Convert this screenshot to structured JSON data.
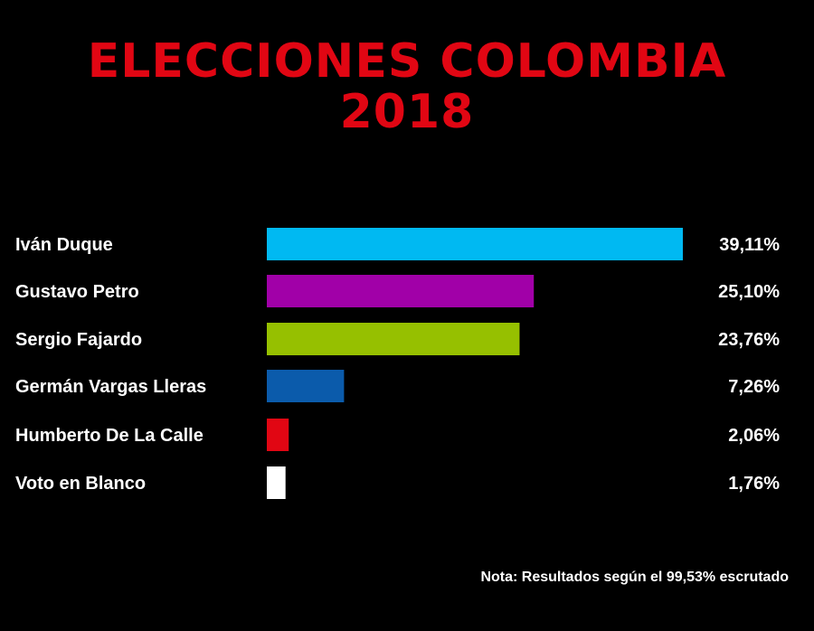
{
  "header": {
    "title_line1": "ELECCIONES COLOMBIA",
    "title_line2": "2018"
  },
  "chart_data": {
    "type": "bar",
    "orientation": "horizontal",
    "title": "ELECCIONES COLOMBIA 2018",
    "categories": [
      "Iván Duque",
      "Gustavo Petro",
      "Sergio Fajardo",
      "Germán Vargas Lleras",
      "Humberto De La Calle",
      "Voto en Blanco"
    ],
    "values": [
      39.11,
      25.1,
      23.76,
      7.26,
      2.06,
      1.76
    ],
    "value_labels": [
      "39,11%",
      "25,10%",
      "23,76%",
      "7,26%",
      "2,06%",
      "1,76%"
    ],
    "colors": [
      "#00b9f2",
      "#a100a8",
      "#96c000",
      "#0b5bab",
      "#e10613",
      "#ffffff"
    ],
    "xlim": [
      0,
      39.11
    ],
    "grid": false,
    "legend": "none"
  },
  "colors": {
    "background": "#000000",
    "title": "#e10613",
    "text": "#ffffff"
  },
  "footer": {
    "note": "Nota: Resultados según el 99,53% escrutado"
  }
}
